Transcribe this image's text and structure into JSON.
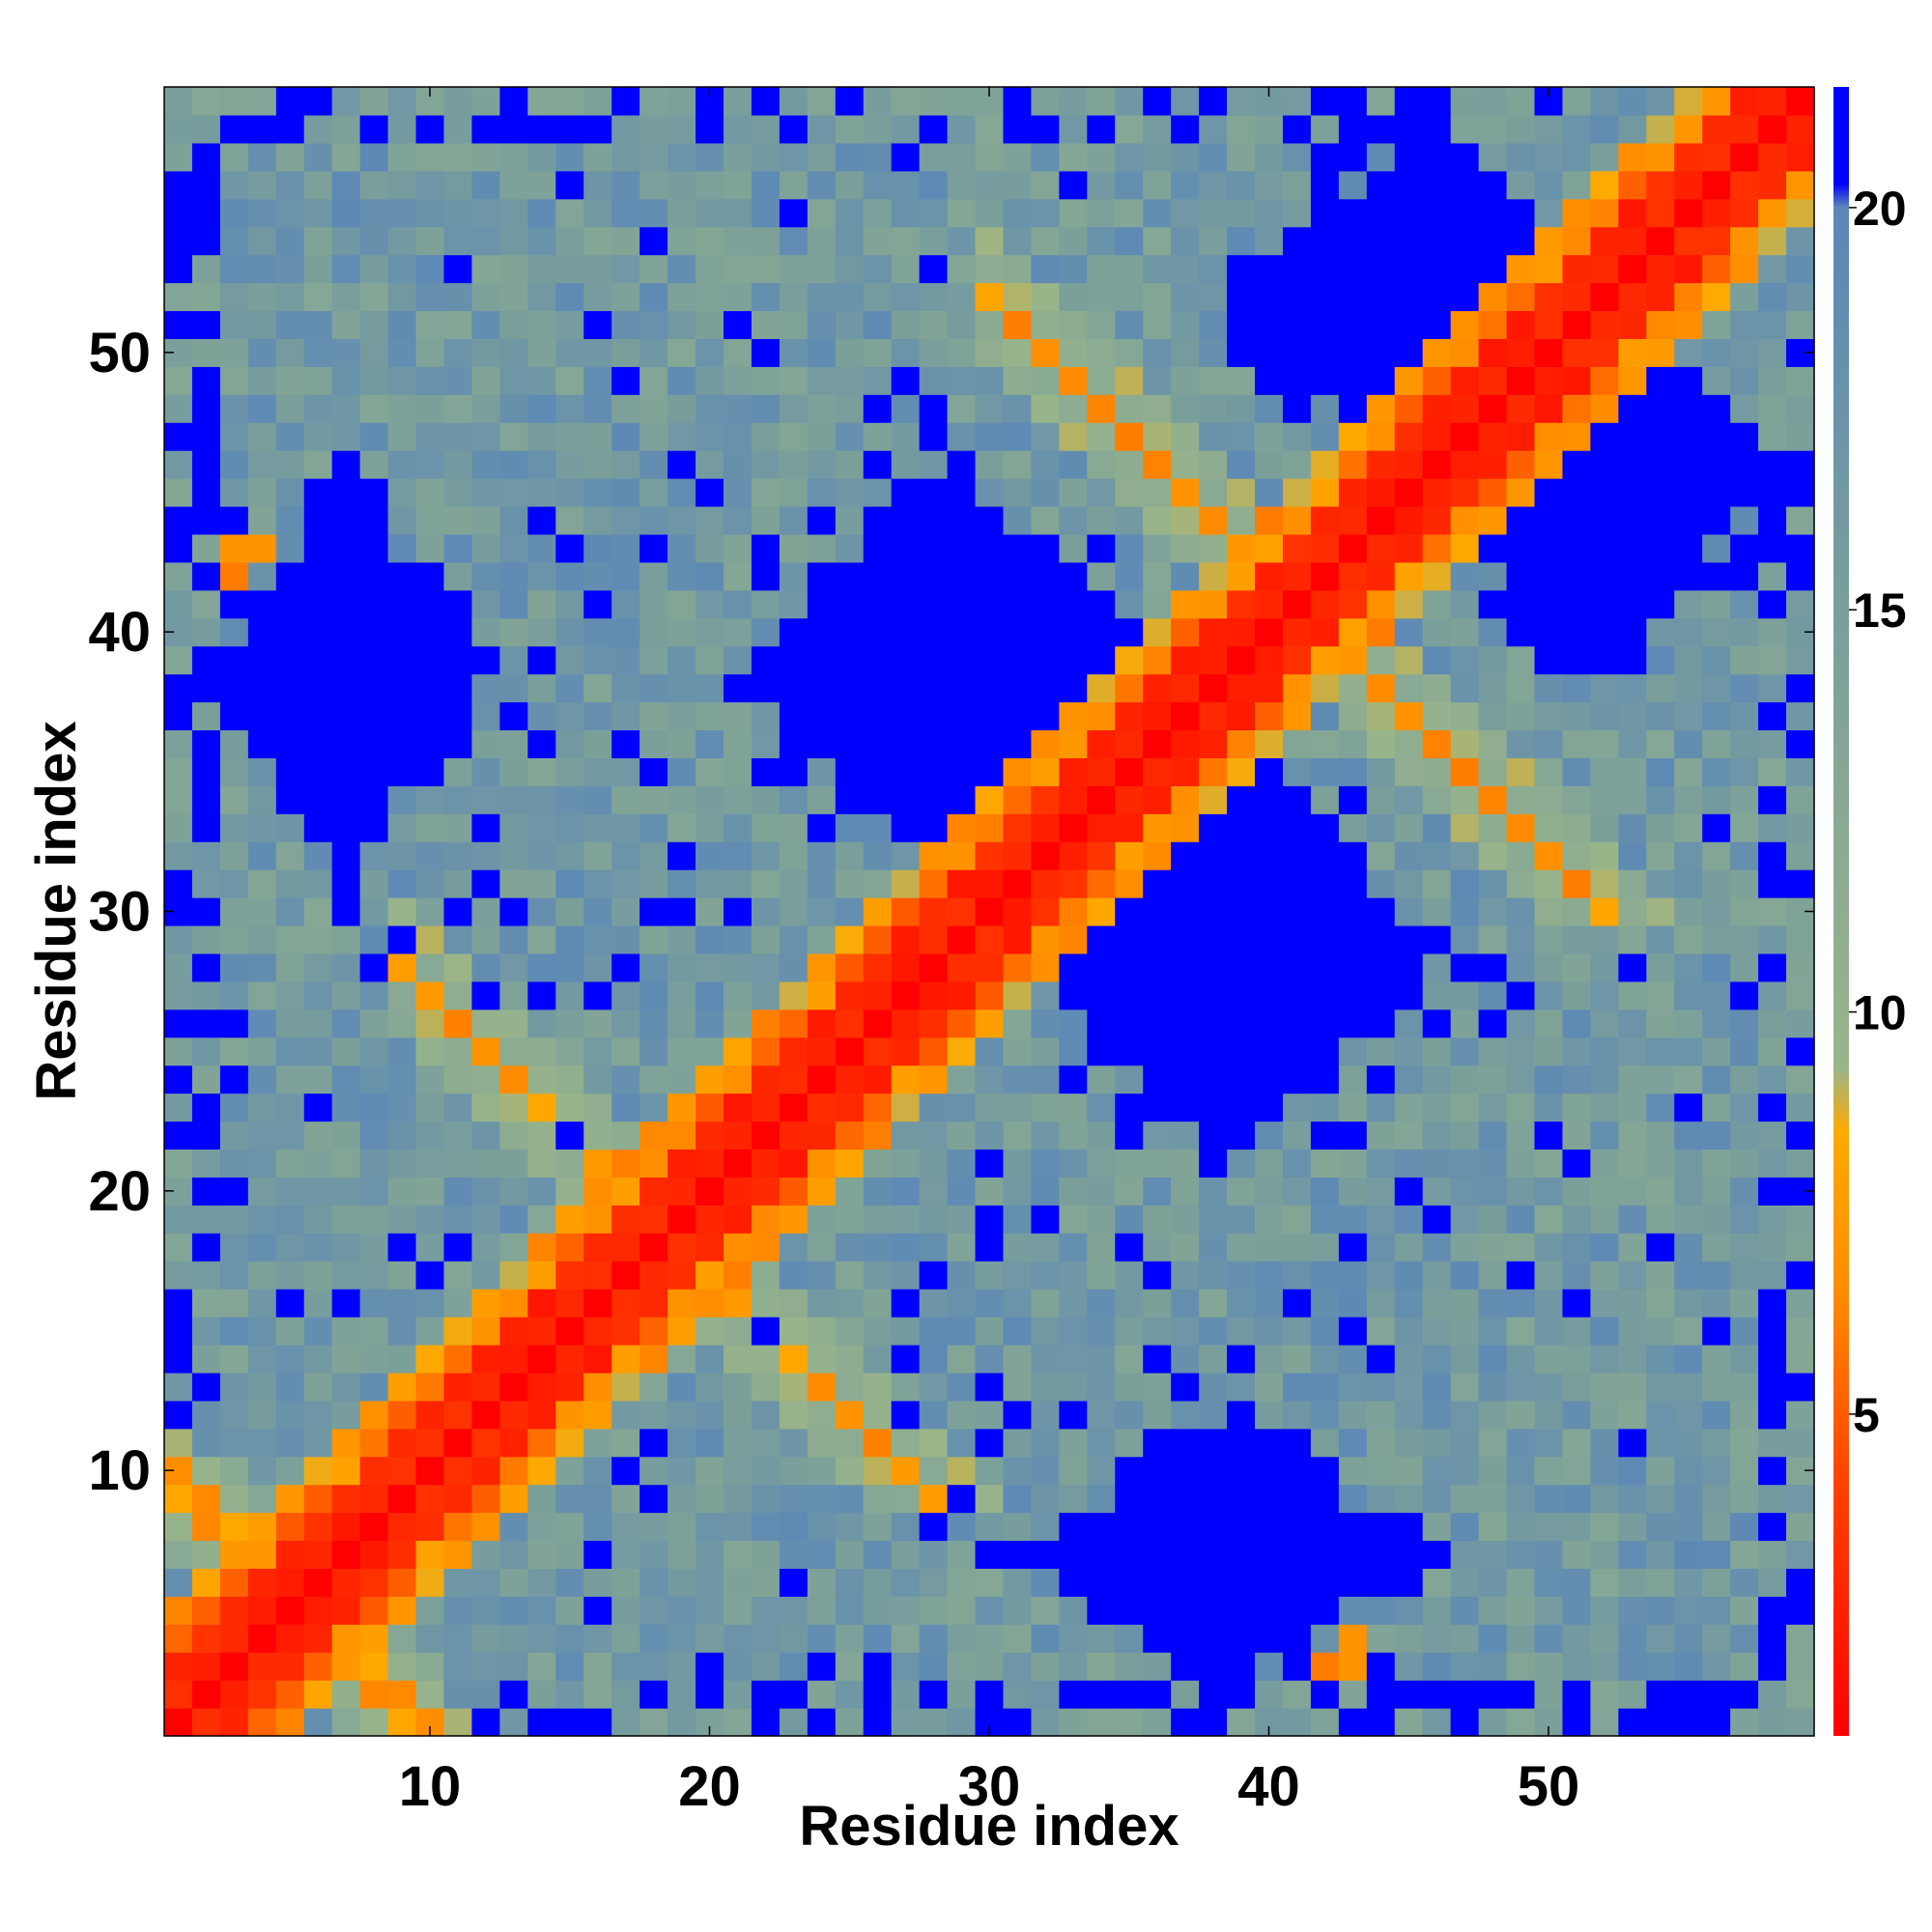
{
  "chart_data": {
    "type": "heatmap",
    "title": "",
    "xlabel": "Residue index",
    "ylabel": "Residue index",
    "n_residues": 59,
    "xlim": [
      0.5,
      59.5
    ],
    "ylim": [
      0.5,
      59.5
    ],
    "x_ticks": [
      10,
      20,
      30,
      40,
      50
    ],
    "y_ticks": [
      10,
      20,
      30,
      40,
      50
    ],
    "grid": false,
    "colorbar": {
      "placement": "right",
      "range": [
        1,
        21.5
      ],
      "ticks": [
        5,
        10,
        15,
        20
      ],
      "color_stops": [
        {
          "value": 1.0,
          "color": "#ff0000"
        },
        {
          "value": 4.3,
          "color": "#ff4500"
        },
        {
          "value": 6.5,
          "color": "#ff8c00"
        },
        {
          "value": 8.5,
          "color": "#ffaa00"
        },
        {
          "value": 9.3,
          "color": "#99b58a"
        },
        {
          "value": 15.0,
          "color": "#7a9f9b"
        },
        {
          "value": 20.0,
          "color": "#5b87b8"
        },
        {
          "value": 20.3,
          "color": "#0000ff"
        },
        {
          "value": 21.5,
          "color": "#0000ff"
        }
      ]
    },
    "blue_regions": [
      {
        "i": [
          20,
          37
        ],
        "j": [
          30,
          47
        ]
      },
      {
        "i": [
          37,
          54
        ],
        "j": [
          44,
          59
        ]
      },
      {
        "i": [
          30,
          47
        ],
        "j": [
          1,
          13
        ]
      },
      {
        "i": [
          1,
          13
        ],
        "j": [
          30,
          47
        ]
      },
      {
        "i": [
          44,
          59
        ],
        "j": [
          37,
          54
        ]
      }
    ],
    "secondary_bands": [
      {
        "i_start": 9,
        "i_end": 19,
        "j_start": 28,
        "j_end": 18,
        "value": 6
      },
      {
        "i_start": 30,
        "i_end": 41,
        "j_start": 52,
        "j_end": 41,
        "value": 6
      },
      {
        "i_start": 1,
        "i_end": 10,
        "j_start": 9,
        "j_end": 1,
        "value": 6
      }
    ],
    "contact_points": [
      {
        "i": 42,
        "j": 2,
        "value": 6
      },
      {
        "i": 43,
        "j": 3,
        "value": 7
      },
      {
        "i": 4,
        "j": 43,
        "value": 7
      },
      {
        "i": 3,
        "j": 42,
        "value": 6
      }
    ]
  }
}
